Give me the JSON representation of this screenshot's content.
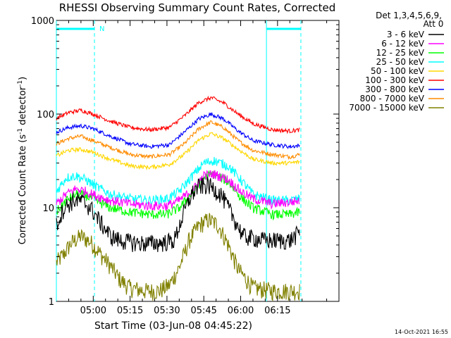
{
  "chart_data": {
    "type": "line",
    "title": "RHESSI Observing Summary Count Rates, Corrected",
    "xlabel": "Start Time (03-Jun-08 04:45:22)",
    "ylabel_prefix": "Corrected Count Rate (s",
    "ylabel_sup1": "-1",
    "ylabel_mid": " detector",
    "ylabel_sup2": "-1",
    "ylabel_suffix": ")",
    "yscale": "log",
    "ylim": [
      1,
      1000
    ],
    "x_minutes_from_0445": [
      0,
      115
    ],
    "xtick_labels": [
      "05:00",
      "05:15",
      "05:30",
      "05:45",
      "06:00",
      "06:15"
    ],
    "xtick_minutes": [
      15,
      30,
      45,
      60,
      75,
      90
    ],
    "ytick_labels": [
      "1",
      "10",
      "100",
      "1000"
    ],
    "ytick_values": [
      1,
      10,
      100,
      1000
    ],
    "legend_header": [
      "Det 1,3,4,5,6,9,",
      "Att 0"
    ],
    "legend_position": "top-right",
    "night_intervals": [
      [
        0,
        15.5
      ],
      [
        85.5,
        99.5
      ]
    ],
    "night_marker": "N",
    "series": [
      {
        "name": "3 - 6 keV",
        "color": "#000000",
        "x": [
          0,
          3,
          7,
          10,
          14,
          18,
          22,
          26,
          34,
          42,
          48,
          52,
          55,
          58,
          62,
          67,
          72,
          76,
          85,
          92,
          95,
          99
        ],
        "y": [
          6.5,
          10,
          12,
          12,
          10,
          7,
          5,
          4.5,
          4.2,
          4.2,
          4.5,
          9,
          14,
          17,
          17.5,
          14,
          8,
          5,
          4.5,
          4.5,
          4.5,
          5.5
        ]
      },
      {
        "name": "6 - 12 keV",
        "color": "#ff00ff",
        "x": [
          0,
          4,
          8,
          12,
          16,
          22,
          30,
          38,
          45,
          50,
          56,
          60,
          64,
          70,
          75,
          80,
          88,
          95,
          99
        ],
        "y": [
          11,
          14,
          16,
          15,
          13.5,
          12,
          11,
          10.5,
          10.5,
          12,
          16,
          22,
          23,
          20,
          15,
          12.5,
          11,
          11.5,
          12
        ]
      },
      {
        "name": "12 - 25 keV",
        "color": "#00ff00",
        "x": [
          0,
          4,
          8,
          12,
          16,
          22,
          30,
          38,
          45,
          50,
          56,
          60,
          64,
          70,
          75,
          80,
          88,
          95,
          99
        ],
        "y": [
          9,
          12,
          14,
          13.5,
          12,
          10,
          9,
          8.5,
          8.5,
          10,
          15,
          21,
          23,
          19,
          13,
          10,
          8.5,
          8.5,
          9
        ]
      },
      {
        "name": "25 - 50 keV",
        "color": "#00ffff",
        "x": [
          0,
          4,
          8,
          12,
          16,
          22,
          30,
          38,
          45,
          50,
          56,
          60,
          64,
          70,
          75,
          80,
          88,
          95,
          99
        ],
        "y": [
          15,
          21,
          22,
          20,
          17,
          14,
          12.5,
          12,
          12.5,
          15,
          23,
          30,
          32,
          28,
          20,
          14,
          12,
          12,
          12.5
        ]
      },
      {
        "name": "50 - 100 keV",
        "color": "#ffd700",
        "x": [
          0,
          5,
          10,
          15,
          22,
          30,
          38,
          46,
          52,
          58,
          63,
          68,
          74,
          80,
          88,
          95,
          99
        ],
        "y": [
          36,
          41,
          42,
          39,
          33,
          28,
          27,
          29,
          37,
          53,
          62,
          55,
          42,
          33,
          30,
          30,
          31
        ]
      },
      {
        "name": "100 - 300 keV",
        "color": "#ff0000",
        "x": [
          0,
          5,
          10,
          15,
          22,
          30,
          38,
          46,
          52,
          58,
          63,
          68,
          74,
          80,
          88,
          95,
          99
        ],
        "y": [
          90,
          104,
          110,
          100,
          84,
          72,
          68,
          72,
          95,
          133,
          150,
          132,
          100,
          79,
          68,
          66,
          68
        ]
      },
      {
        "name": "300 - 800 keV",
        "color": "#0000ff",
        "x": [
          0,
          5,
          10,
          15,
          22,
          30,
          38,
          46,
          52,
          58,
          63,
          68,
          74,
          80,
          88,
          95,
          99
        ],
        "y": [
          64,
          72,
          75,
          70,
          58,
          48,
          45,
          47,
          64,
          89,
          100,
          89,
          66,
          52,
          47,
          45,
          46
        ]
      },
      {
        "name": "800 - 7000 keV",
        "color": "#ff8c00",
        "x": [
          0,
          5,
          10,
          15,
          22,
          30,
          38,
          46,
          52,
          58,
          63,
          68,
          74,
          80,
          88,
          95,
          99
        ],
        "y": [
          48,
          55,
          58,
          52,
          44,
          37,
          35,
          37,
          48,
          70,
          82,
          72,
          52,
          41,
          37,
          35,
          37
        ]
      },
      {
        "name": "7000 - 15000 keV",
        "color": "#808000",
        "x": [
          0,
          3,
          6,
          10,
          14,
          18,
          22,
          26,
          30,
          36,
          42,
          46,
          50,
          54,
          58,
          62,
          66,
          70,
          74,
          80,
          88,
          95,
          99
        ],
        "y": [
          2.6,
          3.2,
          4.2,
          5,
          4.3,
          3.2,
          2.4,
          1.7,
          1.4,
          1.3,
          1.3,
          1.5,
          2.3,
          4.5,
          6.5,
          7.5,
          6.5,
          4,
          2.2,
          1.4,
          1.3,
          1.3,
          1.3
        ]
      }
    ]
  },
  "timestamp": "14-Oct-2021 16:55"
}
